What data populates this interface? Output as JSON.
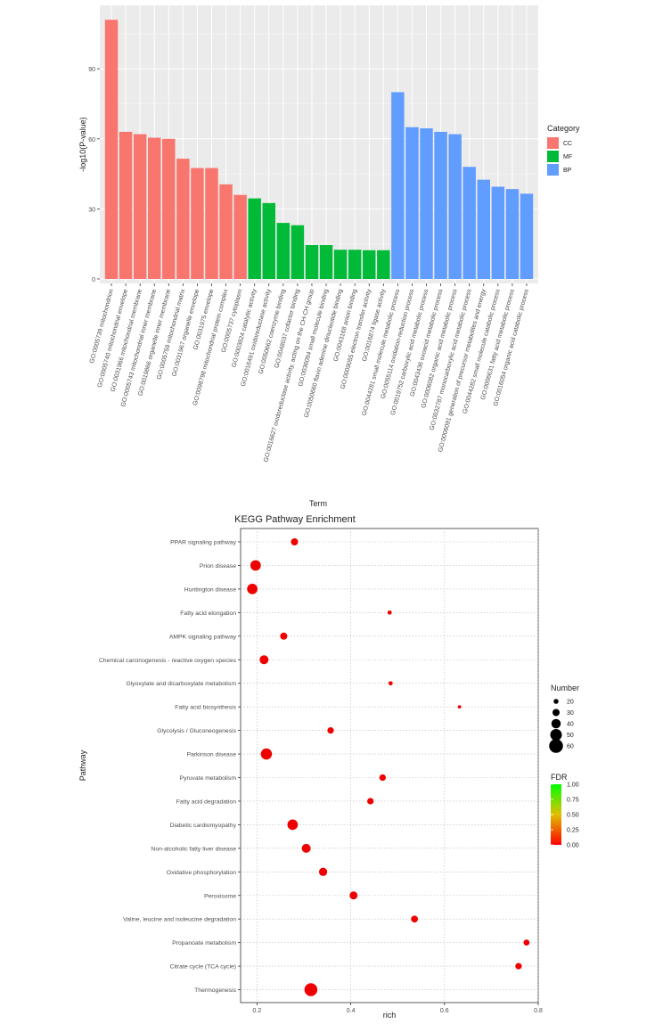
{
  "chart_data": [
    {
      "type": "bar",
      "xlabel": "Term",
      "ylabel": "-log10(P-value)",
      "ylim": [
        0,
        113
      ],
      "yticks": [
        0,
        30,
        60,
        90
      ],
      "grid": true,
      "legend": {
        "title": "Category",
        "placement": "right",
        "entries": [
          {
            "name": "CC",
            "color": "#F8766D"
          },
          {
            "name": "MF",
            "color": "#00BA38"
          },
          {
            "name": "BP",
            "color": "#619CFF"
          }
        ]
      },
      "categories": [
        "GO:0005739 mitochondrion",
        "GO:0005740 mitochondrial envelope",
        "GO:0031966 mitochondrial membrane",
        "GO:0005743 mitochondrial inner membrane",
        "GO:0019866 organelle inner membrane",
        "GO:0005759 mitochondrial matrix",
        "GO:0031967 organelle envelope",
        "GO:0031975 envelope",
        "GO:0098798 mitochondrial protein complex",
        "GO:0005737 cytoplasm",
        "GO:0003824 catalytic activity",
        "GO:0016491 oxidoreductase activity",
        "GO:0050662 coenzyme binding",
        "GO:0048037 cofactor binding",
        "GO:0016627 oxidoreductase activity, acting on the CH-CH group",
        "GO:0036094 small molecule binding",
        "GO:0050660 flavin adenine dinucleotide binding",
        "GO:0043168 anion binding",
        "GO:0009055 electron transfer activity",
        "GO:0016874 ligase activity",
        "GO:0044281 small molecule metabolic process",
        "GO:0055114 oxidation-reduction process",
        "GO:0019752 carboxylic acid metabolic process",
        "GO:0043436 oxoacid metabolic process",
        "GO:0006082 organic acid metabolic process",
        "GO:0032787 monocarboxylic acid metabolic process",
        "GO:0006091 generation of precursor metabolites and energy",
        "GO:0044282 small molecule catabolic process",
        "GO:0006631 fatty acid metabolic process",
        "GO:0016054 organic acid catabolic process"
      ],
      "groups": [
        "CC",
        "CC",
        "CC",
        "CC",
        "CC",
        "CC",
        "CC",
        "CC",
        "CC",
        "CC",
        "MF",
        "MF",
        "MF",
        "MF",
        "MF",
        "MF",
        "MF",
        "MF",
        "MF",
        "MF",
        "BP",
        "BP",
        "BP",
        "BP",
        "BP",
        "BP",
        "BP",
        "BP",
        "BP",
        "BP"
      ],
      "values": [
        111,
        63,
        62,
        60.5,
        60,
        51.5,
        47.5,
        47.5,
        40.5,
        36,
        34.5,
        32.5,
        24,
        23,
        14.5,
        14.5,
        12.5,
        12.5,
        12.3,
        12.3,
        80,
        65,
        64.5,
        63,
        62,
        48,
        42.5,
        39.5,
        38.5,
        36.5
      ]
    },
    {
      "type": "scatter",
      "title": "KEGG Pathway Enrichment",
      "xlabel": "rich",
      "ylabel": "Pathway",
      "xlim": [
        0.165,
        0.8
      ],
      "xticks": [
        0.2,
        0.4,
        0.6,
        0.8
      ],
      "grid": true,
      "categories": [
        "PPAR signaling pathway",
        "Prion disease",
        "Huntington disease",
        "Fatty acid elongation",
        "AMPK signaling pathway",
        "Chemical carcinogenesis - reactive oxygen species",
        "Glyoxylate and dicarboxylate metabolism",
        "Fatty acid biosynthesis",
        "Glycolysis / Gluconeogenesis",
        "Parkinson disease",
        "Pyruvate metabolism",
        "Fatty acid degradation",
        "Diabetic cardiomyopathy",
        "Non-alcoholic fatty liver disease",
        "Oxidative phosphorylation",
        "Peroxisome",
        "Valine, leucine and isoleucine degradation",
        "Propanoate metabolism",
        "Citrate cycle (TCA cycle)",
        "Thermogenesis"
      ],
      "rich": [
        0.28,
        0.197,
        0.19,
        0.483,
        0.257,
        0.215,
        0.485,
        0.632,
        0.357,
        0.22,
        0.468,
        0.442,
        0.276,
        0.305,
        0.341,
        0.406,
        0.536,
        0.775,
        0.758,
        0.315
      ],
      "number": [
        30,
        45,
        45,
        17,
        30,
        38,
        17,
        13,
        27,
        48,
        27,
        27,
        45,
        38,
        35,
        34,
        29,
        25,
        27,
        56
      ],
      "fdr": [
        0.01,
        0.01,
        0.01,
        0.02,
        0.01,
        0.01,
        0.02,
        0.03,
        0.01,
        0.01,
        0.01,
        0.01,
        0.01,
        0.01,
        0.01,
        0.01,
        0.01,
        0.01,
        0.01,
        0.01
      ],
      "size_legend": {
        "title": "Number",
        "values": [
          20,
          30,
          40,
          50,
          60
        ]
      },
      "color_legend": {
        "title": "FDR",
        "ticks": [
          "1.00",
          "0.75",
          "0.50",
          "0.25",
          "0.00"
        ],
        "colors": [
          "#00FF00",
          "#FF0000"
        ]
      },
      "point_color": "#EE0000"
    }
  ]
}
